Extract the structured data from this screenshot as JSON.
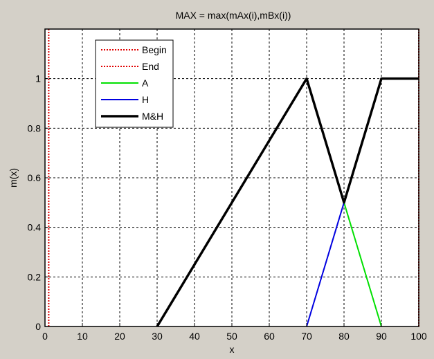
{
  "chart_data": {
    "type": "line",
    "title": "MAX = max(mAx(i),mBx(i))",
    "xlabel": "x",
    "ylabel": "m(x)",
    "xlim": [
      0,
      100
    ],
    "ylim": [
      0,
      1.2
    ],
    "xticks": [
      0,
      10,
      20,
      30,
      40,
      50,
      60,
      70,
      80,
      90,
      100
    ],
    "yticks": [
      0,
      0.2,
      0.4,
      0.6,
      0.8,
      1
    ],
    "grid": true,
    "legend_position": "top-left",
    "series": [
      {
        "name": "Begin",
        "color": "#e00000",
        "style": "dotted",
        "width": 2,
        "x": [
          1,
          1
        ],
        "y": [
          0,
          1.2
        ]
      },
      {
        "name": "End",
        "color": "#e00000",
        "style": "dotted",
        "width": 2,
        "x": [
          100,
          100
        ],
        "y": [
          0,
          1.2
        ]
      },
      {
        "name": "A",
        "color": "#00e000",
        "style": "solid",
        "width": 2,
        "x": [
          80,
          90
        ],
        "y": [
          0.5,
          0
        ]
      },
      {
        "name": "H",
        "color": "#0000e0",
        "style": "solid",
        "width": 2,
        "x": [
          70,
          80
        ],
        "y": [
          0,
          0.5
        ]
      },
      {
        "name": "M&H",
        "color": "#000000",
        "style": "solid",
        "width": 3.5,
        "x": [
          30,
          70,
          80,
          90,
          100
        ],
        "y": [
          0,
          1,
          0.5,
          1,
          1
        ]
      }
    ]
  }
}
